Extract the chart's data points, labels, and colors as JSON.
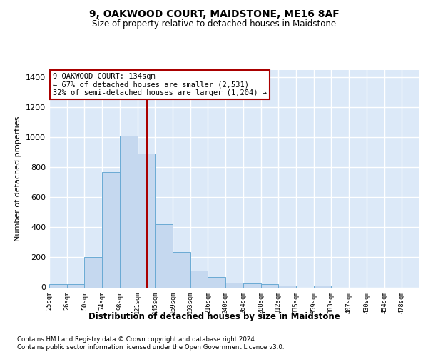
{
  "title": "9, OAKWOOD COURT, MAIDSTONE, ME16 8AF",
  "subtitle": "Size of property relative to detached houses in Maidstone",
  "xlabel": "Distribution of detached houses by size in Maidstone",
  "ylabel": "Number of detached properties",
  "bar_labels": [
    "25sqm",
    "26sqm",
    "50sqm",
    "74sqm",
    "98sqm",
    "121sqm",
    "145sqm",
    "169sqm",
    "193sqm",
    "216sqm",
    "240sqm",
    "264sqm",
    "288sqm",
    "312sqm",
    "335sqm",
    "359sqm",
    "383sqm",
    "407sqm",
    "430sqm",
    "454sqm",
    "478sqm"
  ],
  "values": [
    20,
    20,
    200,
    770,
    1010,
    890,
    420,
    235,
    110,
    70,
    30,
    25,
    20,
    10,
    0,
    10,
    0,
    0,
    0,
    0,
    0
  ],
  "bar_color": "#c5d8ef",
  "bar_edge_color": "#6aaad4",
  "property_line_color": "#aa0000",
  "annotation_line1": "9 OAKWOOD COURT: 134sqm",
  "annotation_line2": "← 67% of detached houses are smaller (2,531)",
  "annotation_line3": "32% of semi-detached houses are larger (1,204) →",
  "ylim": [
    0,
    1450
  ],
  "yticks": [
    0,
    200,
    400,
    600,
    800,
    1000,
    1200,
    1400
  ],
  "bg_color": "#dce9f8",
  "footnote1": "Contains HM Land Registry data © Crown copyright and database right 2024.",
  "footnote2": "Contains public sector information licensed under the Open Government Licence v3.0.",
  "property_size_idx": 5,
  "n_bins": 21
}
